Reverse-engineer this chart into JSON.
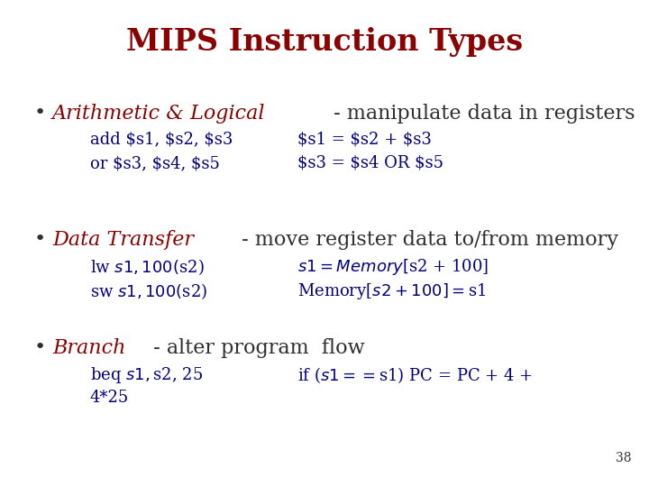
{
  "title": "MIPS Instruction Types",
  "title_color": "#8B0000",
  "title_fontsize": 24,
  "bg_color": "#FFFFFF",
  "heading_color": "#8B0000",
  "code_color": "#000080",
  "body_color": "#2F2F2F",
  "page_number": "38",
  "figsize": [
    7.2,
    5.4
  ],
  "dpi": 100,
  "bullets": [
    {
      "heading": "Arithmetic & Logical",
      "body": " - manipulate data in registers",
      "sublines": [
        [
          "add $s1, $s2, $s3",
          "$s1 = $s2 + $s3"
        ],
        [
          "or $s3, $s4, $s5",
          "$s3 = $s4 OR $s5"
        ]
      ]
    },
    {
      "heading": "Data Transfer",
      "body": " - move register data to/from memory",
      "sublines": [
        [
          "lw $s1, 100($s2)",
          "$s1 = Memory[$s2 + 100]"
        ],
        [
          "sw $s1, 100($s2)",
          "Memory[$s2 + 100] = $s1"
        ]
      ]
    },
    {
      "heading": "Branch",
      "body": " - alter program  flow",
      "sublines": [
        [
          "beq $s1, $s2, 25",
          "if ($s1==$s1) PC = PC + 4 +"
        ],
        [
          "4*25",
          ""
        ]
      ]
    }
  ]
}
